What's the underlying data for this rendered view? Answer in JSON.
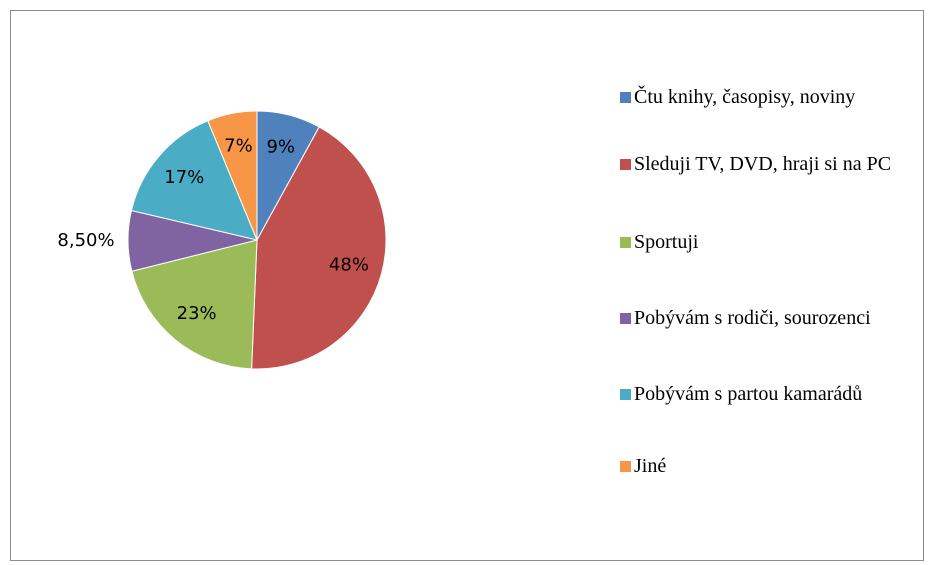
{
  "chart_data": {
    "type": "pie",
    "categories": [
      "Čtu knihy, časopisy, noviny",
      "Sleduji TV, DVD, hraji si na PC",
      "Sportuji",
      "Pobývám s rodiči, sourozenci",
      "Pobývám s partou kamarádů",
      "Jiné"
    ],
    "values": [
      9,
      48,
      23,
      8.5,
      17,
      7
    ],
    "value_labels": [
      "9%",
      "48%",
      "23%",
      "8,50%",
      "17%",
      "7%"
    ],
    "colors": [
      "#4f81bd",
      "#c0504d",
      "#9bbb59",
      "#8064a2",
      "#4bacc6",
      "#f79646"
    ],
    "legend": "right"
  }
}
